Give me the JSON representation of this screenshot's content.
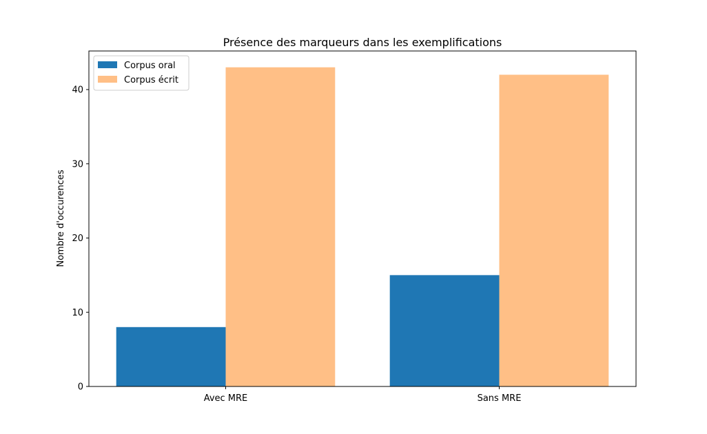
{
  "chart_data": {
    "type": "bar",
    "title": "Présence des marqueurs dans les exemplifications",
    "xlabel": "",
    "ylabel": "Nombre d'occurences",
    "categories": [
      "Avec MRE",
      "Sans MRE"
    ],
    "series": [
      {
        "name": "Corpus oral",
        "values": [
          8,
          15
        ],
        "color": "#1f77b4"
      },
      {
        "name": "Corpus écrit",
        "values": [
          43,
          42
        ],
        "color": "#ffbf86"
      }
    ],
    "ylim": [
      0,
      45.2
    ],
    "yticks": [
      0,
      10,
      20,
      30,
      40
    ],
    "grid": false,
    "legend_position": "top-left"
  }
}
